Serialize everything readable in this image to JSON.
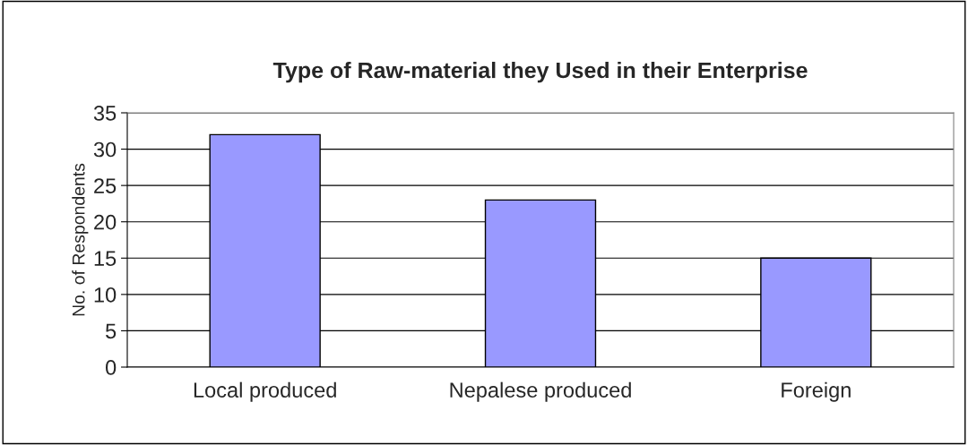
{
  "chart_data": {
    "type": "bar",
    "title": "Type of Raw-material they Used in their Enterprise",
    "ylabel": "No. of Respondents",
    "categories": [
      "Local produced",
      "Nepalese produced",
      "Foreign"
    ],
    "values": [
      32,
      23,
      15
    ],
    "color": "#9999ff",
    "ylim": [
      0,
      35
    ],
    "yticks": [
      0,
      5,
      10,
      15,
      20,
      25,
      30,
      35
    ],
    "grid": "y",
    "legend": false
  }
}
